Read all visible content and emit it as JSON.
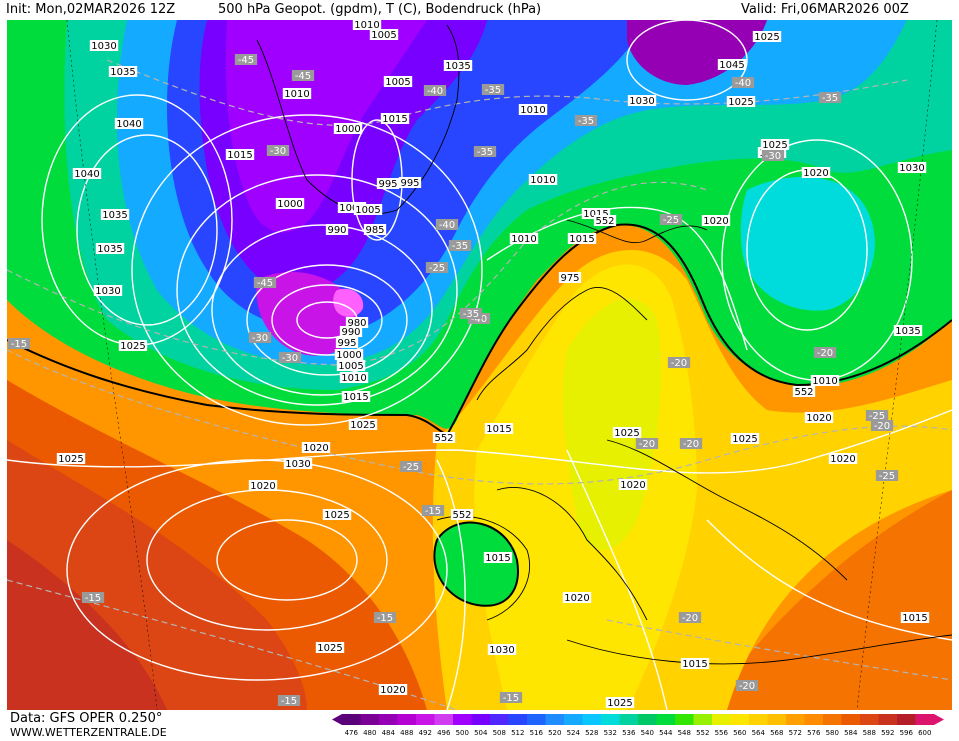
{
  "header": {
    "init": "Init: Mon,02MAR2026 12Z",
    "title": "500 hPa Geopot. (gpdm), T (C), Bodendruck (hPa)",
    "valid": "Valid: Fri,06MAR2026 00Z"
  },
  "footer": {
    "data_source": "Data: GFS OPER 0.250°",
    "website": "WWW.WETTERZENTRALE.DE"
  },
  "legend": {
    "values": [
      "476",
      "480",
      "484",
      "488",
      "492",
      "496",
      "500",
      "504",
      "508",
      "512",
      "516",
      "520",
      "524",
      "528",
      "532",
      "536",
      "540",
      "544",
      "548",
      "552",
      "556",
      "560",
      "564",
      "568",
      "572",
      "576",
      "580",
      "584",
      "588",
      "592",
      "596",
      "600"
    ],
    "colors": [
      "#5a0078",
      "#7a0096",
      "#9600b4",
      "#b400d2",
      "#c814e6",
      "#d23cf0",
      "#a000ff",
      "#7800ff",
      "#5028ff",
      "#2846ff",
      "#1e64ff",
      "#1e8cff",
      "#14aaff",
      "#0ac8ff",
      "#00dcdc",
      "#00d2a0",
      "#00c864",
      "#00dc3c",
      "#32e600",
      "#96f000",
      "#e6f000",
      "#ffe600",
      "#ffd200",
      "#ffbe00",
      "#ffa000",
      "#ff8c00",
      "#f57300",
      "#eb5a00",
      "#dc4614",
      "#c8321e",
      "#b41e28",
      "#dc146e"
    ]
  },
  "pressure_labels": [
    "1010",
    "1005",
    "1030",
    "1035",
    "1010",
    "1005",
    "1035",
    "1010",
    "1025",
    "1045",
    "1040",
    "1030",
    "1025",
    "1035",
    "1015",
    "1000",
    "1015",
    "1010",
    "1040",
    "995",
    "1000",
    "1005",
    "1020",
    "1015",
    "1025",
    "995",
    "990",
    "985",
    "1040",
    "1035",
    "1030",
    "1025",
    "1010",
    "1005",
    "1020",
    "1015",
    "975",
    "980",
    "990",
    "995",
    "1000",
    "1005",
    "1010",
    "1015",
    "1025",
    "1020",
    "1025",
    "1030",
    "1015",
    "1020",
    "1025",
    "1020",
    "1020",
    "1025",
    "1035",
    "1010",
    "1015",
    "1020",
    "1030",
    "1015",
    "1025",
    "1015",
    "1020",
    "1025",
    "1030",
    "1020",
    "1025"
  ],
  "temperature_labels": [
    "-45",
    "-45",
    "-40",
    "-35",
    "-35",
    "-35",
    "-40",
    "-30",
    "-35",
    "-30",
    "-40",
    "-35",
    "-25",
    "-45",
    "-30",
    "-40",
    "-35",
    "-25",
    "-15",
    "-20",
    "-30",
    "-20",
    "-20",
    "-25",
    "-25",
    "-20",
    "-15",
    "-20",
    "-20",
    "-15",
    "-15",
    "-15",
    "-15",
    "-20",
    "-25"
  ],
  "geopotential_labels": [
    "552",
    "552",
    "552",
    "552"
  ]
}
